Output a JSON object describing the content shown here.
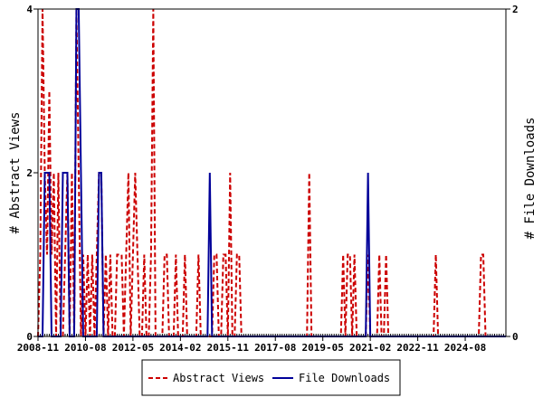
{
  "colors": {
    "views": "#cc0000",
    "downloads": "#000099",
    "axis": "#000000"
  },
  "chart_data": {
    "type": "line",
    "ylabel_left": "# Abstract Views",
    "ylabel_right": "# File Downloads",
    "ylim_left": [
      0,
      4
    ],
    "ylim_right": [
      0,
      2
    ],
    "yticks_left": [
      "0",
      "2",
      "4"
    ],
    "yticks_right": [
      "0",
      "2"
    ],
    "xlim": [
      "2008-11",
      "2026-02"
    ],
    "xticks": [
      "2008-11",
      "2010-08",
      "2012-05",
      "2014-02",
      "2015-11",
      "2017-08",
      "2019-05",
      "2021-02",
      "2022-11",
      "2024-08"
    ],
    "legend": {
      "placement": "bottom-center",
      "entries": [
        "Abstract Views",
        "File Downloads"
      ]
    },
    "series": [
      {
        "name": "Abstract Views",
        "axis": "left",
        "style": "dashed",
        "points": [
          [
            "2008-11",
            0
          ],
          [
            "2008-12",
            1
          ],
          [
            "2009-01",
            4
          ],
          [
            "2009-02",
            2
          ],
          [
            "2009-03",
            1
          ],
          [
            "2009-04",
            3
          ],
          [
            "2009-05",
            1
          ],
          [
            "2009-06",
            2
          ],
          [
            "2009-07",
            0
          ],
          [
            "2009-08",
            2
          ],
          [
            "2009-09",
            0
          ],
          [
            "2009-10",
            0
          ],
          [
            "2009-11",
            1
          ],
          [
            "2009-12",
            2
          ],
          [
            "2010-01",
            0
          ],
          [
            "2010-02",
            2
          ],
          [
            "2010-03",
            0
          ],
          [
            "2010-04",
            4
          ],
          [
            "2010-05",
            2
          ],
          [
            "2010-06",
            0
          ],
          [
            "2010-07",
            1
          ],
          [
            "2010-08",
            0
          ],
          [
            "2010-09",
            1
          ],
          [
            "2010-10",
            0
          ],
          [
            "2010-11",
            1
          ],
          [
            "2010-12",
            0
          ],
          [
            "2011-01",
            1
          ],
          [
            "2011-02",
            2
          ],
          [
            "2011-03",
            2
          ],
          [
            "2011-04",
            0
          ],
          [
            "2011-05",
            1
          ],
          [
            "2011-06",
            0
          ],
          [
            "2011-07",
            1
          ],
          [
            "2011-08",
            0
          ],
          [
            "2011-09",
            0
          ],
          [
            "2011-10",
            1
          ],
          [
            "2011-11",
            1
          ],
          [
            "2011-12",
            1
          ],
          [
            "2012-01",
            0
          ],
          [
            "2012-02",
            1
          ],
          [
            "2012-03",
            2
          ],
          [
            "2012-04",
            0
          ],
          [
            "2012-05",
            1
          ],
          [
            "2012-06",
            2
          ],
          [
            "2012-07",
            1
          ],
          [
            "2012-08",
            0
          ],
          [
            "2012-09",
            0
          ],
          [
            "2012-10",
            1
          ],
          [
            "2012-11",
            0
          ],
          [
            "2012-12",
            0
          ],
          [
            "2013-01",
            1
          ],
          [
            "2013-02",
            4
          ],
          [
            "2013-03",
            0
          ],
          [
            "2013-04",
            0
          ],
          [
            "2013-05",
            0
          ],
          [
            "2013-06",
            0
          ],
          [
            "2013-07",
            1
          ],
          [
            "2013-08",
            1
          ],
          [
            "2013-09",
            0
          ],
          [
            "2013-10",
            0
          ],
          [
            "2013-11",
            0
          ],
          [
            "2013-12",
            1
          ],
          [
            "2014-01",
            0
          ],
          [
            "2014-02",
            0
          ],
          [
            "2014-03",
            0
          ],
          [
            "2014-04",
            1
          ],
          [
            "2014-05",
            0
          ],
          [
            "2014-06",
            0
          ],
          [
            "2014-07",
            0
          ],
          [
            "2014-08",
            0
          ],
          [
            "2014-09",
            0
          ],
          [
            "2014-10",
            1
          ],
          [
            "2014-11",
            0
          ],
          [
            "2014-12",
            0
          ],
          [
            "2015-01",
            0
          ],
          [
            "2015-02",
            0
          ],
          [
            "2015-03",
            0
          ],
          [
            "2015-04",
            0
          ],
          [
            "2015-05",
            1
          ],
          [
            "2015-06",
            1
          ],
          [
            "2015-07",
            0
          ],
          [
            "2015-08",
            0
          ],
          [
            "2015-09",
            1
          ],
          [
            "2015-10",
            1
          ],
          [
            "2015-11",
            0
          ],
          [
            "2015-12",
            2
          ],
          [
            "2016-01",
            0
          ],
          [
            "2016-02",
            0
          ],
          [
            "2016-03",
            1
          ],
          [
            "2016-04",
            1
          ],
          [
            "2016-05",
            0
          ],
          [
            "2016-06",
            0
          ],
          [
            "2016-07",
            0
          ],
          [
            "2016-08",
            0
          ],
          [
            "2016-09",
            0
          ],
          [
            "2016-10",
            0
          ],
          [
            "2016-11",
            0
          ],
          [
            "2016-12",
            0
          ],
          [
            "2017-01",
            0
          ],
          [
            "2017-02",
            0
          ],
          [
            "2017-03",
            0
          ],
          [
            "2017-04",
            0
          ],
          [
            "2017-05",
            0
          ],
          [
            "2017-06",
            0
          ],
          [
            "2017-07",
            0
          ],
          [
            "2017-08",
            0
          ],
          [
            "2017-09",
            0
          ],
          [
            "2017-10",
            0
          ],
          [
            "2017-11",
            0
          ],
          [
            "2017-12",
            0
          ],
          [
            "2018-01",
            0
          ],
          [
            "2018-02",
            0
          ],
          [
            "2018-03",
            0
          ],
          [
            "2018-04",
            0
          ],
          [
            "2018-05",
            0
          ],
          [
            "2018-06",
            0
          ],
          [
            "2018-07",
            0
          ],
          [
            "2018-08",
            0
          ],
          [
            "2018-09",
            0
          ],
          [
            "2018-10",
            0
          ],
          [
            "2018-11",
            2
          ],
          [
            "2018-12",
            0
          ],
          [
            "2019-01",
            0
          ],
          [
            "2019-02",
            0
          ],
          [
            "2019-03",
            0
          ],
          [
            "2019-04",
            0
          ],
          [
            "2019-05",
            0
          ],
          [
            "2019-06",
            0
          ],
          [
            "2019-07",
            0
          ],
          [
            "2019-08",
            0
          ],
          [
            "2019-09",
            0
          ],
          [
            "2019-10",
            0
          ],
          [
            "2019-11",
            0
          ],
          [
            "2019-12",
            0
          ],
          [
            "2020-01",
            0
          ],
          [
            "2020-02",
            1
          ],
          [
            "2020-03",
            0
          ],
          [
            "2020-04",
            1
          ],
          [
            "2020-05",
            1
          ],
          [
            "2020-06",
            0
          ],
          [
            "2020-07",
            1
          ],
          [
            "2020-08",
            0
          ],
          [
            "2020-09",
            0
          ],
          [
            "2020-10",
            0
          ],
          [
            "2020-11",
            0
          ],
          [
            "2020-12",
            0
          ],
          [
            "2021-01",
            1
          ],
          [
            "2021-02",
            0
          ],
          [
            "2021-03",
            0
          ],
          [
            "2021-04",
            0
          ],
          [
            "2021-05",
            0
          ],
          [
            "2021-06",
            1
          ],
          [
            "2021-07",
            0
          ],
          [
            "2021-08",
            0
          ],
          [
            "2021-09",
            1
          ],
          [
            "2021-10",
            0
          ],
          [
            "2021-11",
            0
          ],
          [
            "2021-12",
            0
          ],
          [
            "2022-01",
            0
          ],
          [
            "2022-02",
            0
          ],
          [
            "2022-03",
            0
          ],
          [
            "2022-04",
            0
          ],
          [
            "2022-05",
            0
          ],
          [
            "2022-06",
            0
          ],
          [
            "2022-07",
            0
          ],
          [
            "2022-08",
            0
          ],
          [
            "2022-09",
            0
          ],
          [
            "2022-10",
            0
          ],
          [
            "2022-11",
            0
          ],
          [
            "2022-12",
            0
          ],
          [
            "2023-01",
            0
          ],
          [
            "2023-02",
            0
          ],
          [
            "2023-03",
            0
          ],
          [
            "2023-04",
            0
          ],
          [
            "2023-05",
            0
          ],
          [
            "2023-06",
            0
          ],
          [
            "2023-07",
            1
          ],
          [
            "2023-08",
            0
          ],
          [
            "2023-09",
            0
          ],
          [
            "2023-10",
            0
          ],
          [
            "2023-11",
            0
          ],
          [
            "2023-12",
            0
          ],
          [
            "2024-01",
            0
          ],
          [
            "2024-02",
            0
          ],
          [
            "2024-03",
            0
          ],
          [
            "2024-04",
            0
          ],
          [
            "2024-05",
            0
          ],
          [
            "2024-06",
            0
          ],
          [
            "2024-07",
            0
          ],
          [
            "2024-08",
            0
          ],
          [
            "2024-09",
            0
          ],
          [
            "2024-10",
            0
          ],
          [
            "2024-11",
            0
          ],
          [
            "2024-12",
            0
          ],
          [
            "2025-01",
            0
          ],
          [
            "2025-02",
            0
          ],
          [
            "2025-03",
            1
          ],
          [
            "2025-04",
            1
          ],
          [
            "2025-05",
            0
          ],
          [
            "2025-06",
            0
          ],
          [
            "2025-07",
            0
          ],
          [
            "2025-08",
            0
          ],
          [
            "2025-09",
            0
          ],
          [
            "2025-10",
            0
          ],
          [
            "2025-11",
            0
          ],
          [
            "2025-12",
            0
          ],
          [
            "2026-01",
            0
          ],
          [
            "2026-02",
            0
          ]
        ]
      },
      {
        "name": "File Downloads",
        "axis": "right",
        "style": "solid",
        "points": [
          [
            "2008-11",
            0
          ],
          [
            "2009-01",
            0
          ],
          [
            "2009-02",
            1
          ],
          [
            "2009-03",
            1
          ],
          [
            "2009-04",
            1
          ],
          [
            "2009-05",
            0
          ],
          [
            "2009-06",
            0
          ],
          [
            "2009-07",
            0
          ],
          [
            "2009-08",
            0
          ],
          [
            "2009-09",
            0
          ],
          [
            "2009-10",
            1
          ],
          [
            "2009-11",
            1
          ],
          [
            "2009-12",
            1
          ],
          [
            "2010-01",
            0
          ],
          [
            "2010-02",
            0
          ],
          [
            "2010-03",
            0
          ],
          [
            "2010-04",
            2
          ],
          [
            "2010-05",
            2
          ],
          [
            "2010-06",
            1
          ],
          [
            "2010-07",
            0
          ],
          [
            "2010-08",
            0
          ],
          [
            "2010-09",
            0
          ],
          [
            "2010-10",
            0
          ],
          [
            "2010-11",
            0
          ],
          [
            "2010-12",
            0
          ],
          [
            "2011-01",
            0
          ],
          [
            "2011-02",
            1
          ],
          [
            "2011-03",
            1
          ],
          [
            "2011-04",
            0
          ],
          [
            "2011-05",
            0
          ],
          [
            "2011-06",
            0
          ],
          [
            "2015-01",
            0
          ],
          [
            "2015-02",
            0
          ],
          [
            "2015-03",
            1
          ],
          [
            "2015-04",
            0
          ],
          [
            "2015-05",
            0
          ],
          [
            "2020-11",
            0
          ],
          [
            "2020-12",
            0
          ],
          [
            "2021-01",
            1
          ],
          [
            "2021-02",
            0
          ],
          [
            "2021-03",
            0
          ],
          [
            "2026-02",
            0
          ]
        ]
      }
    ]
  }
}
